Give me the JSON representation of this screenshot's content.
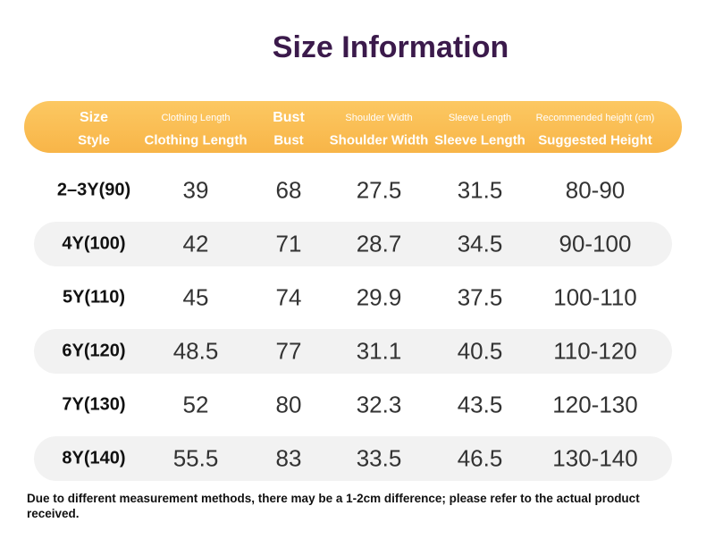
{
  "title": "Size Information",
  "table": {
    "header": [
      [
        "Size",
        "Style"
      ],
      [
        "Clothing Length",
        "Clothing Length"
      ],
      [
        "Bust",
        "Bust"
      ],
      [
        "Shoulder Width",
        "Shoulder Width"
      ],
      [
        "Sleeve Length",
        "Sleeve Length"
      ],
      [
        "Recommended height (cm)",
        "Suggested Height"
      ]
    ],
    "rows": [
      [
        "2–3Y(90)",
        "39",
        "68",
        "27.5",
        "31.5",
        "80-90"
      ],
      [
        "4Y(100)",
        "42",
        "71",
        "28.7",
        "34.5",
        "90-100"
      ],
      [
        "5Y(110)",
        "45",
        "74",
        "29.9",
        "37.5",
        "100-110"
      ],
      [
        "6Y(120)",
        "48.5",
        "77",
        "31.1",
        "40.5",
        "110-120"
      ],
      [
        "7Y(130)",
        "52",
        "80",
        "32.3",
        "43.5",
        "120-130"
      ],
      [
        "8Y(140)",
        "55.5",
        "83",
        "33.5",
        "46.5",
        "130-140"
      ]
    ]
  },
  "note": "Due to different measurement methods, there may be a 1-2cm difference; please refer to the actual product received."
}
